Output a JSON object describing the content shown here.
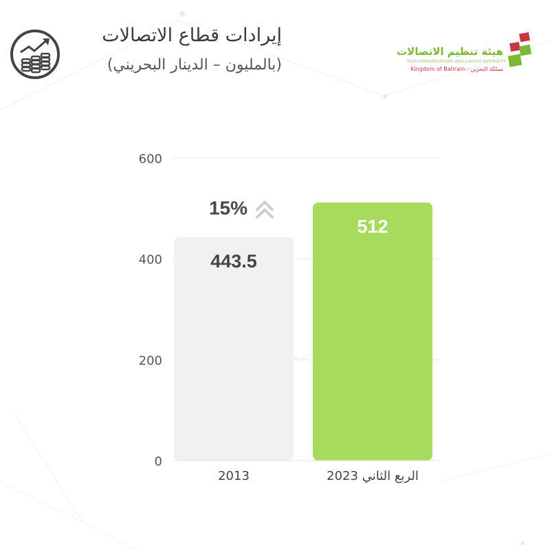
{
  "header": {
    "title": "إيرادات قطاع الاتصالات",
    "subtitle": "(بالمليون – الدينار البحريني)",
    "icon": "revenue-growth-coins-icon"
  },
  "logo": {
    "name_ar": "هيئة تنظيم الاتصالات",
    "name_en": "TELECOMMUNICATIONS REGULATORY AUTHORITY",
    "country": "Kingdom of Bahrain - مملكة البحرين",
    "colors": [
      "#c9363d",
      "#7cb834"
    ]
  },
  "chart_data": {
    "type": "bar",
    "title": "",
    "xlabel": "",
    "ylabel": "",
    "categories": [
      "2013",
      "الربع الثاني 2023"
    ],
    "values": [
      443.5,
      512
    ],
    "value_labels": [
      "443.5",
      "512"
    ],
    "ylim": [
      0,
      600
    ],
    "yticks": [
      0,
      200,
      400,
      600
    ],
    "grid": true,
    "legend": "none",
    "bar_colors": [
      "#f1f1f1",
      "#a8da5e"
    ],
    "value_label_colors": [
      "#444444",
      "#ffffff"
    ],
    "annotation": {
      "text": "15%",
      "icon": "double-chevron-up-icon"
    }
  }
}
